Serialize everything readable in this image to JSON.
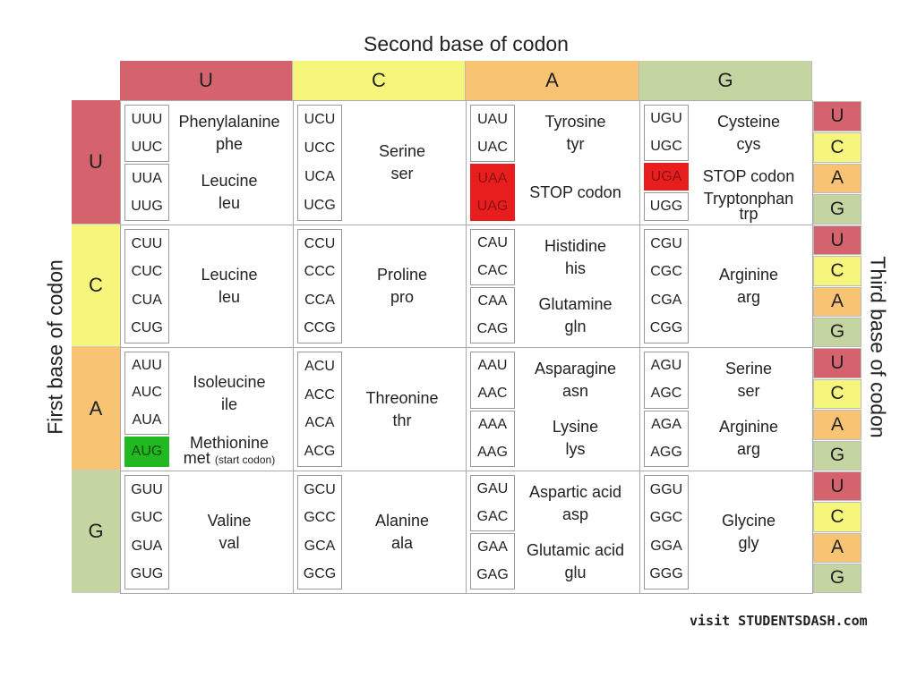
{
  "titles": {
    "second": "Second base of codon",
    "first": "First base of codon",
    "third": "Third base of codon"
  },
  "colors": {
    "U": "#d5636d",
    "C": "#f6f67c",
    "A": "#f8c473",
    "G": "#c4d5a2",
    "stop": "#e81e1e",
    "start": "#22b822"
  },
  "bases": [
    "U",
    "C",
    "A",
    "G"
  ],
  "rows": [
    {
      "base": "U",
      "cells": [
        {
          "groups": [
            {
              "codons": [
                "UUU",
                "UUC"
              ],
              "name": "Phenylalanine",
              "abbr": "phe"
            },
            {
              "codons": [
                "UUA",
                "UUG"
              ],
              "name": "Leucine",
              "abbr": "leu"
            }
          ]
        },
        {
          "groups": [
            {
              "codons": [
                "UCU",
                "UCC",
                "UCA",
                "UCG"
              ],
              "name": "Serine",
              "abbr": "ser"
            }
          ]
        },
        {
          "groups": [
            {
              "codons": [
                "UAU",
                "UAC"
              ],
              "name": "Tyrosine",
              "abbr": "tyr"
            },
            {
              "codons": [
                "UAA",
                "UAG"
              ],
              "name": "STOP codon",
              "abbr": "",
              "type": "stop"
            }
          ]
        },
        {
          "groups": [
            {
              "codons": [
                "UGU",
                "UGC"
              ],
              "name": "Cysteine",
              "abbr": "cys"
            },
            {
              "codons": [
                "UGA"
              ],
              "name": "STOP codon",
              "abbr": "",
              "type": "stop"
            },
            {
              "codons": [
                "UGG"
              ],
              "name": "Tryptonphan",
              "abbr": "trp"
            }
          ]
        }
      ]
    },
    {
      "base": "C",
      "cells": [
        {
          "groups": [
            {
              "codons": [
                "CUU",
                "CUC",
                "CUA",
                "CUG"
              ],
              "name": "Leucine",
              "abbr": "leu"
            }
          ]
        },
        {
          "groups": [
            {
              "codons": [
                "CCU",
                "CCC",
                "CCA",
                "CCG"
              ],
              "name": "Proline",
              "abbr": "pro"
            }
          ]
        },
        {
          "groups": [
            {
              "codons": [
                "CAU",
                "CAC"
              ],
              "name": "Histidine",
              "abbr": "his"
            },
            {
              "codons": [
                "CAA",
                "CAG"
              ],
              "name": "Glutamine",
              "abbr": "gln"
            }
          ]
        },
        {
          "groups": [
            {
              "codons": [
                "CGU",
                "CGC",
                "CGA",
                "CGG"
              ],
              "name": "Arginine",
              "abbr": "arg"
            }
          ]
        }
      ]
    },
    {
      "base": "A",
      "cells": [
        {
          "groups": [
            {
              "codons": [
                "AUU",
                "AUC",
                "AUA"
              ],
              "name": "Isoleucine",
              "abbr": "ile"
            },
            {
              "codons": [
                "AUG"
              ],
              "name": "Methionine",
              "abbr": "met",
              "note": "(start codon)",
              "type": "start"
            }
          ]
        },
        {
          "groups": [
            {
              "codons": [
                "ACU",
                "ACC",
                "ACA",
                "ACG"
              ],
              "name": "Threonine",
              "abbr": "thr"
            }
          ]
        },
        {
          "groups": [
            {
              "codons": [
                "AAU",
                "AAC"
              ],
              "name": "Asparagine",
              "abbr": "asn"
            },
            {
              "codons": [
                "AAA",
                "AAG"
              ],
              "name": "Lysine",
              "abbr": "lys"
            }
          ]
        },
        {
          "groups": [
            {
              "codons": [
                "AGU",
                "AGC"
              ],
              "name": "Serine",
              "abbr": "ser"
            },
            {
              "codons": [
                "AGA",
                "AGG"
              ],
              "name": "Arginine",
              "abbr": "arg"
            }
          ]
        }
      ]
    },
    {
      "base": "G",
      "cells": [
        {
          "groups": [
            {
              "codons": [
                "GUU",
                "GUC",
                "GUA",
                "GUG"
              ],
              "name": "Valine",
              "abbr": "val"
            }
          ]
        },
        {
          "groups": [
            {
              "codons": [
                "GCU",
                "GCC",
                "GCA",
                "GCG"
              ],
              "name": "Alanine",
              "abbr": "ala"
            }
          ]
        },
        {
          "groups": [
            {
              "codons": [
                "GAU",
                "GAC"
              ],
              "name": "Aspartic acid",
              "abbr": "asp"
            },
            {
              "codons": [
                "GAA",
                "GAG"
              ],
              "name": "Glutamic acid",
              "abbr": "glu"
            }
          ]
        },
        {
          "groups": [
            {
              "codons": [
                "GGU",
                "GGC",
                "GGA",
                "GGG"
              ],
              "name": "Glycine",
              "abbr": "gly"
            }
          ]
        }
      ]
    }
  ],
  "footer": "visit STUDENTSDASH.com"
}
